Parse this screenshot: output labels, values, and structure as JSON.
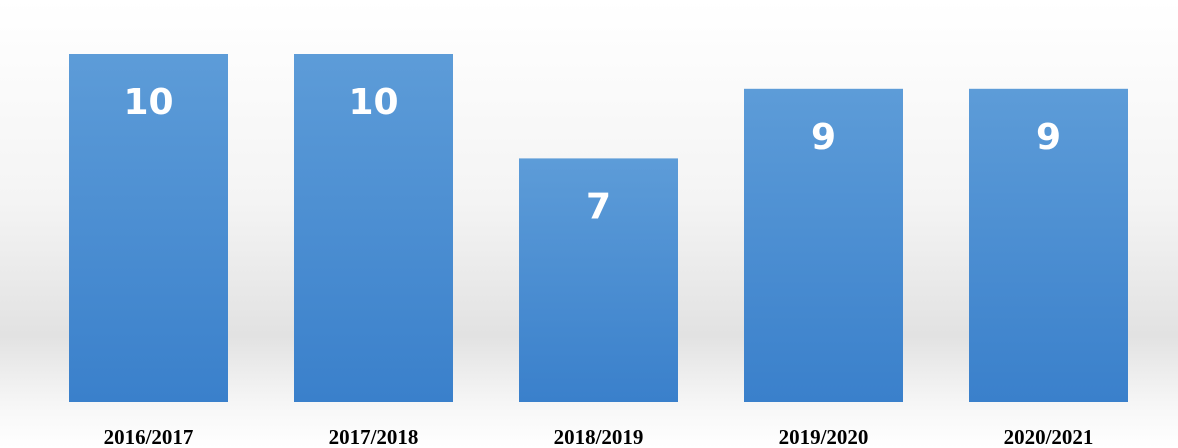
{
  "chart_data": {
    "type": "bar",
    "categories": [
      "2016/2017",
      "2017/2018",
      "2018/2019",
      "2019/2020",
      "2020/2021"
    ],
    "values": [
      10,
      10,
      7,
      9,
      9
    ],
    "color": "#4a8fd3"
  }
}
